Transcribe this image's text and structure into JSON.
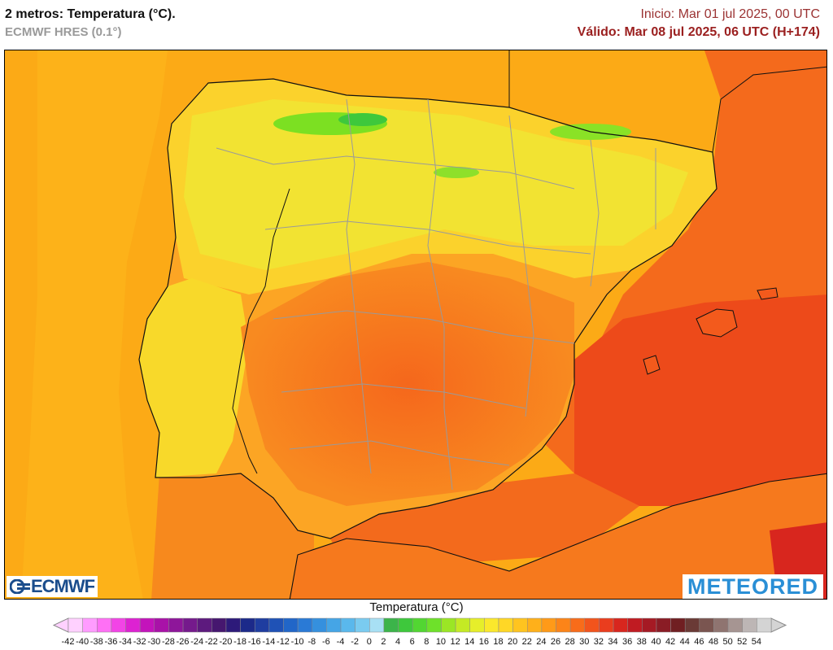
{
  "header": {
    "title": "2 metros: Temperatura (°C).",
    "subtitle": "ECMWF HRES (0.1°)",
    "init": "Inicio: Mar 01 jul 2025, 00 UTC",
    "valid": "Válido: Mar 08 jul 2025, 06 UTC (H+174)"
  },
  "logos": {
    "left": "ECMWF",
    "right": "METEORED"
  },
  "legend": {
    "title": "Temperatura (°C)",
    "ticks": [
      "-42",
      "-40",
      "-38",
      "-36",
      "-34",
      "-32",
      "-30",
      "-28",
      "-26",
      "-24",
      "-22",
      "-20",
      "-18",
      "-16",
      "-14",
      "-12",
      "-10",
      "-8",
      "-6",
      "-4",
      "-2",
      "0",
      "2",
      "4",
      "6",
      "8",
      "10",
      "12",
      "14",
      "16",
      "18",
      "20",
      "22",
      "24",
      "26",
      "28",
      "30",
      "32",
      "34",
      "36",
      "38",
      "40",
      "42",
      "44",
      "46",
      "48",
      "50",
      "52",
      "54"
    ],
    "colors": [
      "#ffd1ff",
      "#ff9cff",
      "#ff70f5",
      "#f244e6",
      "#dd22d2",
      "#c314bb",
      "#a912a8",
      "#8e169a",
      "#751a8c",
      "#5d1a7e",
      "#46176f",
      "#2d1a7a",
      "#1c2a8a",
      "#1f3da0",
      "#1f52b6",
      "#2166c8",
      "#2a7ad6",
      "#3590de",
      "#45a5e6",
      "#5ab8ec",
      "#7acbf0",
      "#a8e0f4",
      "#3cb44a",
      "#3ec83c",
      "#52d632",
      "#6ee12a",
      "#9be625",
      "#c4ea24",
      "#e6ee2a",
      "#fbe82c",
      "#ffd726",
      "#ffc41f",
      "#ffb01a",
      "#ff9a18",
      "#fc8418",
      "#f86c1a",
      "#f2541c",
      "#ea3d1e",
      "#d8261e",
      "#c01b22",
      "#a51a24",
      "#8a1c25",
      "#701f22",
      "#6a3a36",
      "#7a5550",
      "#8f7470",
      "#a69592",
      "#bdb6b5",
      "#d4d4d4"
    ]
  }
}
